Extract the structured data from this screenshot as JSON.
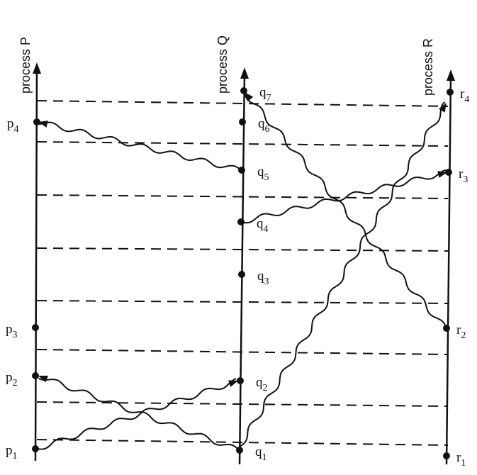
{
  "processes": [
    {
      "label": "process P",
      "events": [
        {
          "name": "p",
          "sub": "1"
        },
        {
          "name": "p",
          "sub": "2"
        },
        {
          "name": "p",
          "sub": "3"
        },
        {
          "name": "p",
          "sub": "4"
        }
      ]
    },
    {
      "label": "process Q",
      "events": [
        {
          "name": "q",
          "sub": "1"
        },
        {
          "name": "q",
          "sub": "2"
        },
        {
          "name": "q",
          "sub": "3"
        },
        {
          "name": "q",
          "sub": "4"
        },
        {
          "name": "q",
          "sub": "5"
        },
        {
          "name": "q",
          "sub": "6"
        },
        {
          "name": "q",
          "sub": "7"
        }
      ]
    },
    {
      "label": "process R",
      "events": [
        {
          "name": "r",
          "sub": "1"
        },
        {
          "name": "r",
          "sub": "2"
        },
        {
          "name": "r",
          "sub": "3"
        },
        {
          "name": "r",
          "sub": "4"
        }
      ]
    }
  ]
}
